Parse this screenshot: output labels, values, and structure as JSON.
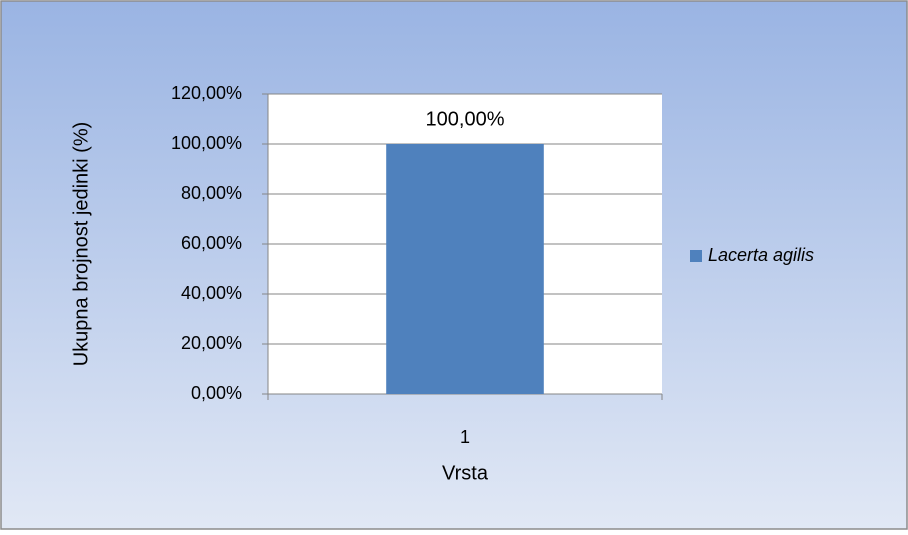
{
  "chart_data": {
    "type": "bar",
    "x_label": "Vrsta",
    "y_label": "Ukupna brojnost jedinki (%)",
    "categories": [
      "1"
    ],
    "series": [
      {
        "name": "Lacerta agilis",
        "color": "#4f81bd",
        "values": [
          100
        ],
        "value_labels": [
          "100,00%"
        ]
      }
    ],
    "ylim": [
      0,
      120
    ],
    "yticks": [
      {
        "value": 0,
        "label": "0,00%"
      },
      {
        "value": 20,
        "label": "20,00%"
      },
      {
        "value": 40,
        "label": "40,00%"
      },
      {
        "value": 60,
        "label": "60,00%"
      },
      {
        "value": 80,
        "label": "80,00%"
      },
      {
        "value": 100,
        "label": "100,00%"
      },
      {
        "value": 120,
        "label": "120,00%"
      }
    ],
    "grid": true,
    "legend": "right"
  }
}
